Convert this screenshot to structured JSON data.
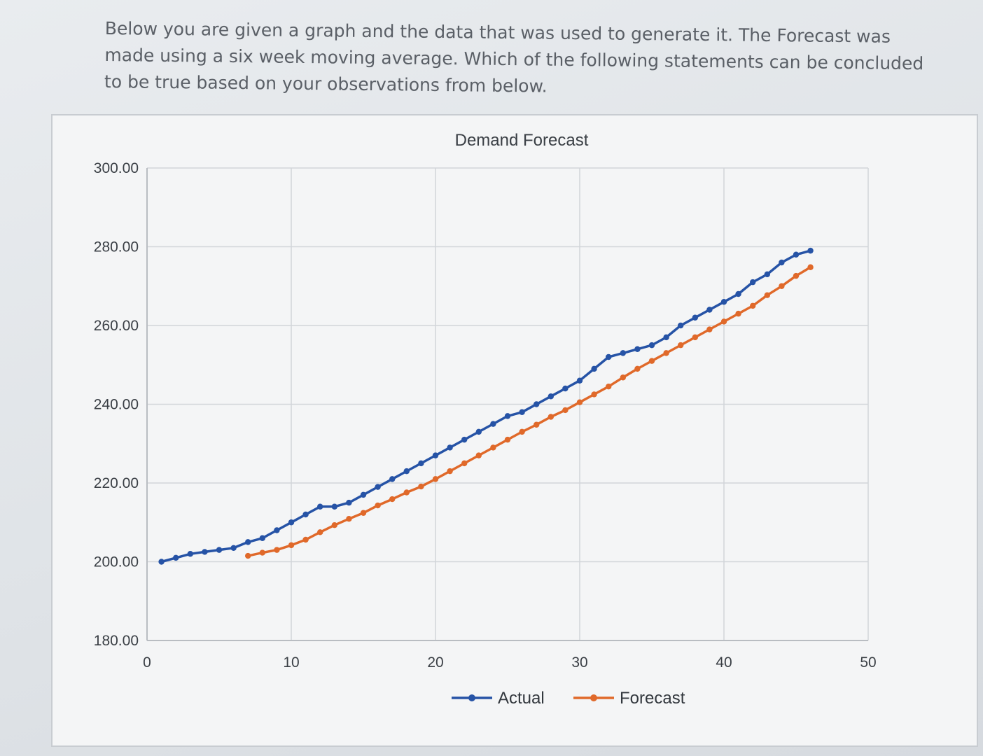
{
  "question": {
    "text": "Below you are given a graph and the data that was used to generate it. The Forecast was made using a six week moving average. Which of the following statements can be concluded to be true based on your observations from below."
  },
  "chart_data": {
    "type": "line",
    "title": "Demand Forecast",
    "xlabel": "",
    "ylabel": "",
    "xlim": [
      0,
      50
    ],
    "ylim": [
      180,
      300
    ],
    "x_ticks": [
      "0",
      "10",
      "20",
      "30",
      "40",
      "50"
    ],
    "y_ticks": [
      "180.00",
      "200.00",
      "220.00",
      "240.00",
      "260.00",
      "280.00",
      "300.00"
    ],
    "grid": true,
    "legend": "bottom",
    "series": [
      {
        "name": "Actual",
        "color": "#2653a6",
        "x": [
          1,
          2,
          3,
          4,
          5,
          6,
          7,
          8,
          9,
          10,
          11,
          12,
          13,
          14,
          15,
          16,
          17,
          18,
          19,
          20,
          21,
          22,
          23,
          24,
          25,
          26,
          27,
          28,
          29,
          30,
          31,
          32,
          33,
          34,
          35,
          36,
          37,
          38,
          39,
          40,
          41,
          42,
          43,
          44,
          45,
          46
        ],
        "values": [
          200,
          201,
          202,
          202.5,
          203,
          203.5,
          205,
          206,
          208,
          210,
          212,
          214,
          214,
          215,
          217,
          219,
          221,
          223,
          225,
          227,
          229,
          231,
          233,
          235,
          237,
          238,
          240,
          242,
          244,
          246,
          249,
          252,
          253,
          254,
          255,
          257,
          260,
          262,
          264,
          266,
          268,
          271,
          273,
          276,
          278,
          279
        ]
      },
      {
        "name": "Forecast",
        "color": "#e0692a",
        "x": [
          7,
          8,
          9,
          10,
          11,
          12,
          13,
          14,
          15,
          16,
          17,
          18,
          19,
          20,
          21,
          22,
          23,
          24,
          25,
          26,
          27,
          28,
          29,
          30,
          31,
          32,
          33,
          34,
          35,
          36,
          37,
          38,
          39,
          40,
          41,
          42,
          43,
          44,
          45,
          46
        ],
        "values": [
          201.5,
          202.3,
          203,
          204.2,
          205.6,
          207.5,
          209.3,
          210.9,
          212.4,
          214.3,
          215.9,
          217.6,
          219.1,
          221,
          223,
          225,
          227,
          229,
          231,
          233,
          234.8,
          236.8,
          238.5,
          240.5,
          242.5,
          244.5,
          246.8,
          249,
          251,
          253,
          255,
          257,
          259,
          261,
          263,
          265,
          267.7,
          270,
          272.6,
          274.8
        ]
      }
    ]
  }
}
